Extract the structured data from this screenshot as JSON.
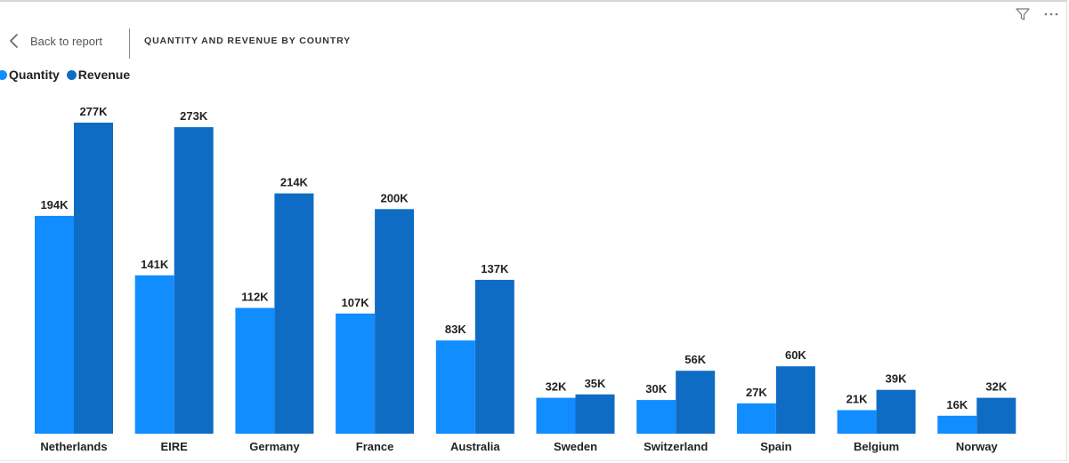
{
  "header": {
    "back_label": "Back to report",
    "title": "QUANTITY AND REVENUE BY COUNTRY"
  },
  "icons": {
    "filter": "filter-icon",
    "more": "more-options-icon",
    "back": "chevron-left-icon"
  },
  "colors": {
    "quantity": "#118dff",
    "revenue": "#0f6cc4"
  },
  "chart_data": {
    "type": "bar",
    "categories": [
      "Netherlands",
      "EIRE",
      "Germany",
      "France",
      "Australia",
      "Sweden",
      "Switzerland",
      "Spain",
      "Belgium",
      "Norway"
    ],
    "series": [
      {
        "name": "Quantity",
        "values": [
          194000,
          141000,
          112000,
          107000,
          83000,
          32000,
          30000,
          27000,
          21000,
          16000
        ],
        "labels": [
          "194K",
          "141K",
          "112K",
          "107K",
          "83K",
          "32K",
          "30K",
          "27K",
          "21K",
          "16K"
        ]
      },
      {
        "name": "Revenue",
        "values": [
          277000,
          273000,
          214000,
          200000,
          137000,
          35000,
          56000,
          60000,
          39000,
          32000
        ],
        "labels": [
          "277K",
          "273K",
          "214K",
          "200K",
          "137K",
          "35K",
          "56K",
          "60K",
          "39K",
          "32K"
        ]
      }
    ],
    "xlabel": "",
    "ylabel": "",
    "ylim": [
      0,
      277000
    ],
    "grid": false,
    "legend": "top-left"
  }
}
